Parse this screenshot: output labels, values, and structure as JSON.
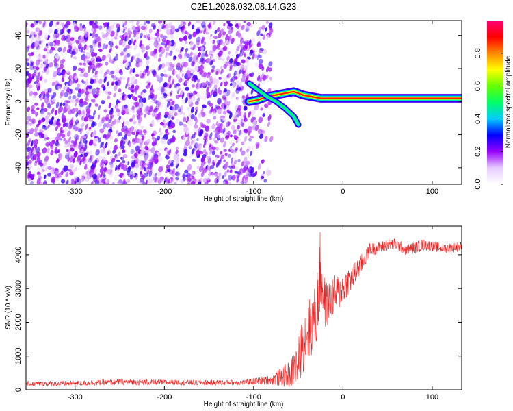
{
  "title": "C2E1.2026.032.08.14.G23",
  "chart_data": [
    {
      "type": "heatmap",
      "xlabel": "Height of straight line (km)",
      "ylabel": "Frequency (Hz)",
      "xlim": [
        -355,
        133
      ],
      "ylim": [
        -50,
        49
      ],
      "xticks": [
        -300,
        -200,
        -100,
        0,
        100
      ],
      "xtick_labels": [
        "-300",
        "-200",
        "-100",
        "0",
        "100"
      ],
      "yticks": [
        -40,
        -20,
        0,
        20,
        40
      ],
      "ytick_labels": [
        "-40",
        "-20",
        "0",
        "20",
        "40"
      ],
      "noise_region_x": [
        -355,
        -80
      ],
      "signal_track": {
        "x": [
          -105,
          -95,
          -85,
          -75,
          -65,
          -55,
          -45,
          -35,
          -25,
          -15,
          -5,
          5,
          20,
          40,
          60,
          80,
          100,
          133
        ],
        "freq": [
          0,
          1,
          3,
          4,
          5,
          6,
          4,
          3,
          2,
          2,
          2,
          2,
          2,
          2,
          2,
          2,
          2,
          2
        ]
      },
      "secondary_track": {
        "x": [
          -105,
          -95,
          -85,
          -75,
          -65,
          -55,
          -50
        ],
        "freq": [
          11,
          7,
          3,
          0,
          -4,
          -9,
          -14
        ]
      },
      "colorbar": {
        "label": "Normalized spectral amplitude",
        "range": [
          0.0,
          1.0
        ],
        "ticks": [
          0.0,
          0.2,
          0.4,
          0.6,
          0.8
        ],
        "tick_labels": [
          "0.0",
          "0.2",
          "0.4",
          "0.6",
          "0.8"
        ],
        "colormap": [
          "#ffffff",
          "#e6ccff",
          "#9900ff",
          "#0000ff",
          "#00ccff",
          "#00ff66",
          "#66ff00",
          "#ffff00",
          "#ff8800",
          "#ff0000",
          "#ff0077"
        ]
      }
    },
    {
      "type": "line",
      "xlabel": "Height of straight line (km)",
      "ylabel": "SNR (10 * v/v)",
      "xlim": [
        -355,
        133
      ],
      "ylim": [
        0,
        4850
      ],
      "xticks": [
        -300,
        -200,
        -100,
        0,
        100
      ],
      "xtick_labels": [
        "-300",
        "-200",
        "-100",
        "0",
        "100"
      ],
      "yticks": [
        0,
        1000,
        2000,
        3000,
        4000
      ],
      "ytick_labels": [
        "0",
        "1000",
        "2000",
        "3000",
        "4000"
      ],
      "line_color": "#ee2222",
      "envelope": {
        "x": [
          -355,
          -300,
          -250,
          -200,
          -150,
          -110,
          -80,
          -60,
          -50,
          -45,
          -40,
          -35,
          -30,
          -25,
          -22,
          -20,
          -15,
          -10,
          -5,
          0,
          5,
          10,
          20,
          30,
          40,
          50,
          60,
          70,
          80,
          90,
          100,
          110,
          120,
          133
        ],
        "mean": [
          180,
          190,
          230,
          220,
          210,
          220,
          300,
          450,
          800,
          1400,
          1700,
          1900,
          2200,
          3600,
          3000,
          2500,
          2600,
          2800,
          2900,
          3000,
          3200,
          3300,
          3700,
          4150,
          4200,
          4300,
          4300,
          4150,
          4200,
          4300,
          4250,
          4200,
          4200,
          4250
        ],
        "noise": [
          70,
          80,
          90,
          80,
          80,
          80,
          150,
          400,
          700,
          900,
          1000,
          900,
          1000,
          1300,
          1200,
          700,
          650,
          600,
          550,
          500,
          450,
          400,
          300,
          200,
          180,
          180,
          180,
          160,
          180,
          180,
          150,
          150,
          150,
          150
        ]
      }
    }
  ]
}
